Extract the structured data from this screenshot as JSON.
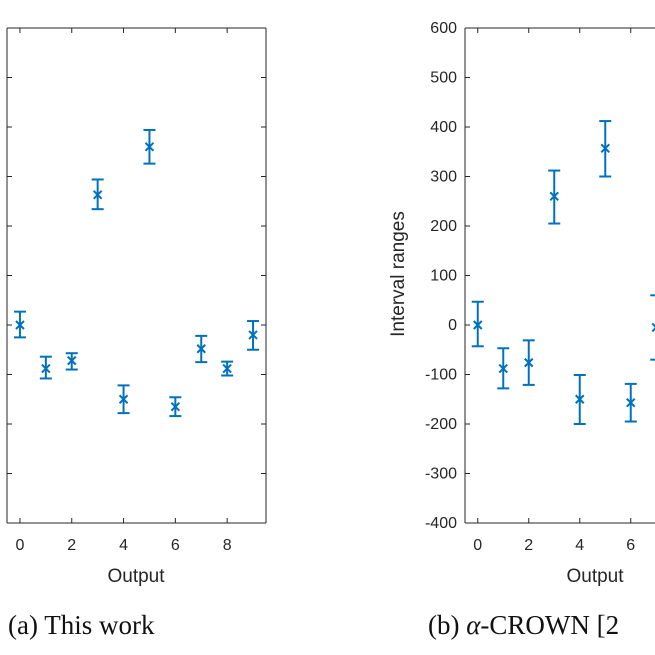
{
  "chart_data": [
    {
      "type": "scatter",
      "caption": "(a) This work",
      "xlabel": "Output",
      "ylabel": "",
      "xlim": [
        -0.5,
        9.5
      ],
      "ylim": [
        -400,
        600
      ],
      "xticks": [
        0,
        2,
        4,
        6,
        8
      ],
      "yticks": [
        -400,
        -300,
        -200,
        -100,
        0,
        100,
        200,
        300,
        400,
        500,
        600
      ],
      "show_ytick_labels": false,
      "grid": false,
      "color": "#0072BD",
      "x": [
        0,
        1,
        2,
        3,
        4,
        5,
        6,
        7,
        8,
        9
      ],
      "y": [
        0,
        -88,
        -72,
        263,
        -150,
        360,
        -165,
        -48,
        -88,
        -20
      ],
      "lower": [
        -25,
        -108,
        -90,
        234,
        -178,
        326,
        -184,
        -75,
        -102,
        -50
      ],
      "upper": [
        27,
        -64,
        -57,
        294,
        -122,
        394,
        -146,
        -22,
        -74,
        8
      ]
    },
    {
      "type": "scatter",
      "caption_prefix": "(b) ",
      "caption_alpha": "α",
      "caption_rest": "-CROWN [2",
      "xlabel": "Output",
      "ylabel": "Interval ranges",
      "xlim": [
        -0.5,
        9.5
      ],
      "ylim": [
        -400,
        600
      ],
      "xticks": [
        0,
        2,
        4,
        6
      ],
      "yticks": [
        -400,
        -300,
        -200,
        -100,
        0,
        100,
        200,
        300,
        400,
        500,
        600
      ],
      "ytick_labels": [
        "-400",
        "-300",
        "-200",
        "-100",
        "0",
        "100",
        "200",
        "300",
        "400",
        "500",
        "600"
      ],
      "grid": false,
      "color": "#0072BD",
      "x": [
        0,
        1,
        2,
        3,
        4,
        5,
        6,
        7
      ],
      "y": [
        0,
        -88,
        -76,
        260,
        -150,
        357,
        -157,
        -5
      ],
      "lower": [
        -43,
        -128,
        -121,
        205,
        -200,
        300,
        -195,
        -70
      ],
      "upper": [
        47,
        -47,
        -31,
        312,
        -101,
        412,
        -119,
        60
      ]
    }
  ]
}
